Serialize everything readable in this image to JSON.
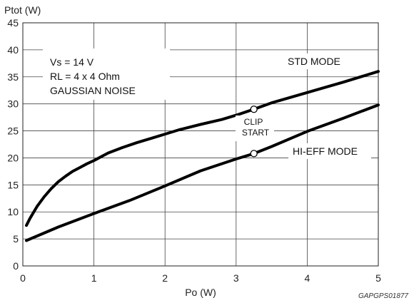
{
  "chart_data": {
    "type": "line",
    "ylabel": "Ptot (W)",
    "xlabel": "Po (W)",
    "xlim": [
      0,
      5
    ],
    "ylim": [
      0,
      45
    ],
    "xticks": [
      "0",
      "1",
      "2",
      "3",
      "4",
      "5"
    ],
    "yticks": [
      "0",
      "5",
      "10",
      "15",
      "20",
      "25",
      "30",
      "35",
      "40",
      "45"
    ],
    "grid": true,
    "conditions": [
      "Vs = 14 V",
      "RL = 4 x 4 Ohm",
      "GAUSSIAN NOISE"
    ],
    "series": [
      {
        "name": "STD MODE",
        "x": [
          0.05,
          0.1,
          0.2,
          0.3,
          0.4,
          0.5,
          0.6,
          0.7,
          0.8,
          0.9,
          1.0,
          1.2,
          1.4,
          1.6,
          1.8,
          2.0,
          2.2,
          2.5,
          2.8,
          3.0,
          3.25,
          3.5,
          4.0,
          4.5,
          5.0
        ],
        "y": [
          7.5,
          8.8,
          11.0,
          12.8,
          14.3,
          15.6,
          16.6,
          17.5,
          18.2,
          18.9,
          19.5,
          20.9,
          21.9,
          22.8,
          23.6,
          24.4,
          25.2,
          26.2,
          27.1,
          27.9,
          29.0,
          30.2,
          32.1,
          34.0,
          36.0
        ]
      },
      {
        "name": "HI-EFF MODE",
        "x": [
          0.05,
          0.5,
          1.0,
          1.5,
          2.0,
          2.5,
          3.0,
          3.25,
          3.5,
          4.0,
          4.5,
          5.0
        ],
        "y": [
          4.7,
          7.2,
          9.7,
          12.1,
          14.8,
          17.6,
          19.8,
          20.8,
          22.1,
          24.9,
          27.3,
          29.8
        ]
      }
    ],
    "clip_points": [
      {
        "series": "STD MODE",
        "x": 3.25,
        "y": 29.0
      },
      {
        "series": "HI-EFF MODE",
        "x": 3.25,
        "y": 20.8
      }
    ],
    "annotations": {
      "std_mode": "STD MODE",
      "hi_eff_mode": "HI-EFF MODE",
      "clip_line1": "CLIP",
      "clip_line2": "START"
    },
    "figure_code": "GAPGPS01877"
  }
}
